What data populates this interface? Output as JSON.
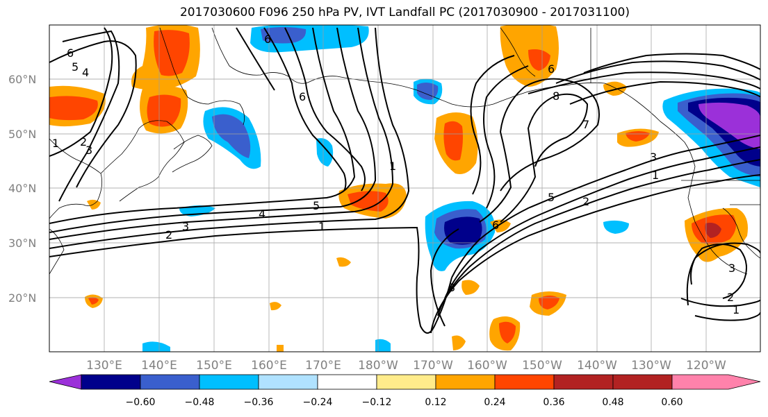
{
  "title": "2017030600 F096 250 hPa PV, IVT Landfall PC (2017030900 - 2017031100)",
  "lat_labels": [
    "60°N",
    "50°N",
    "40°N",
    "30°N",
    "20°N"
  ],
  "lon_labels": [
    "130°E",
    "140°E",
    "150°E",
    "160°E",
    "170°E",
    "180°W",
    "170°W",
    "160°W",
    "150°W",
    "140°W",
    "130°W",
    "120°W"
  ],
  "colorbar": {
    "tick_labels": [
      "−0.60",
      "−0.48",
      "−0.36",
      "−0.24",
      "−0.12",
      "0.12",
      "0.24",
      "0.36",
      "0.48",
      "0.60"
    ],
    "colors": [
      "#9b30d9",
      "#00008b",
      "#3a5fcd",
      "#00bfff",
      "#b0e2ff",
      "#ffffff",
      "#ffec8b",
      "#ffa500",
      "#ff4500",
      "#b22222",
      "#ff82ab"
    ]
  },
  "contour_labels": [
    "6",
    "5",
    "4",
    "6",
    "1",
    "2",
    "3",
    "5",
    "4",
    "3",
    "2",
    "1",
    "6",
    "1",
    "6",
    "8",
    "7",
    "3",
    "1",
    "5",
    "2",
    "6",
    "3",
    "3",
    "2",
    "1"
  ]
}
